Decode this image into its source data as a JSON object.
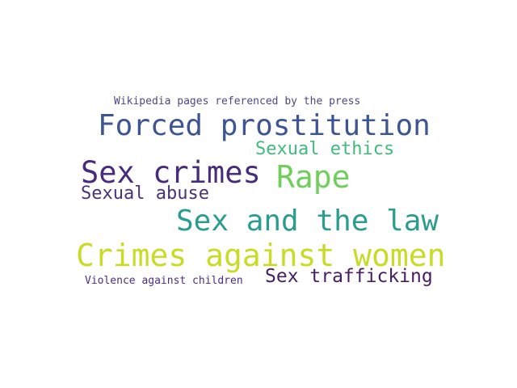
{
  "cloud": {
    "title": {
      "text": "Wikipedia pages referenced by the press",
      "color": "#4a4a86"
    },
    "words": [
      {
        "text": "Forced prostitution",
        "color": "#3f5593"
      },
      {
        "text": "Sexual ethics",
        "color": "#3fbb7b"
      },
      {
        "text": "Sex crimes",
        "color": "#472c7a"
      },
      {
        "text": "Rape",
        "color": "#6fcf5a"
      },
      {
        "text": "Sexual abuse",
        "color": "#453477"
      },
      {
        "text": "Sex and the law",
        "color": "#2a9d8f"
      },
      {
        "text": "Crimes against women",
        "color": "#c8dc26"
      },
      {
        "text": "Violence against children",
        "color": "#4d2d84"
      },
      {
        "text": "Sex trafficking",
        "color": "#451f61"
      }
    ]
  }
}
